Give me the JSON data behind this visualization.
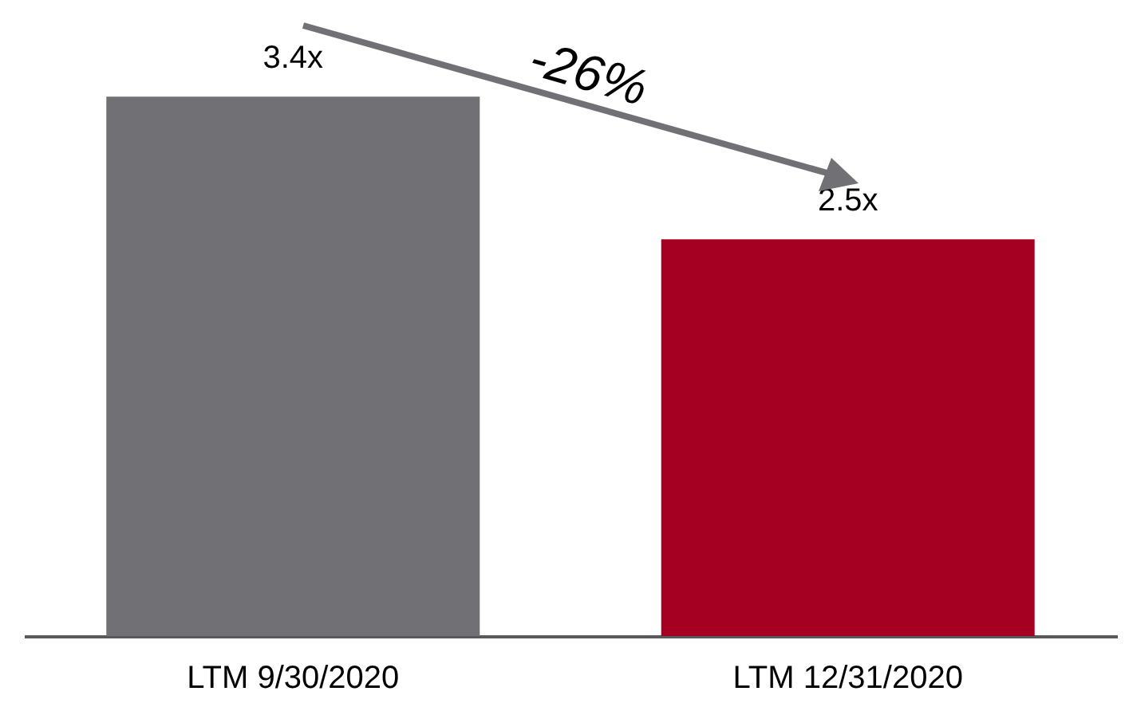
{
  "chart_data": {
    "type": "bar",
    "categories": [
      "LTM 9/30/2020",
      "LTM 12/31/2020"
    ],
    "values": [
      3.4,
      2.5
    ],
    "colors": [
      "#717074",
      "#a50021"
    ],
    "value_labels": [
      "3.4x",
      "2.5x"
    ],
    "annotations": [
      "-26%"
    ]
  }
}
